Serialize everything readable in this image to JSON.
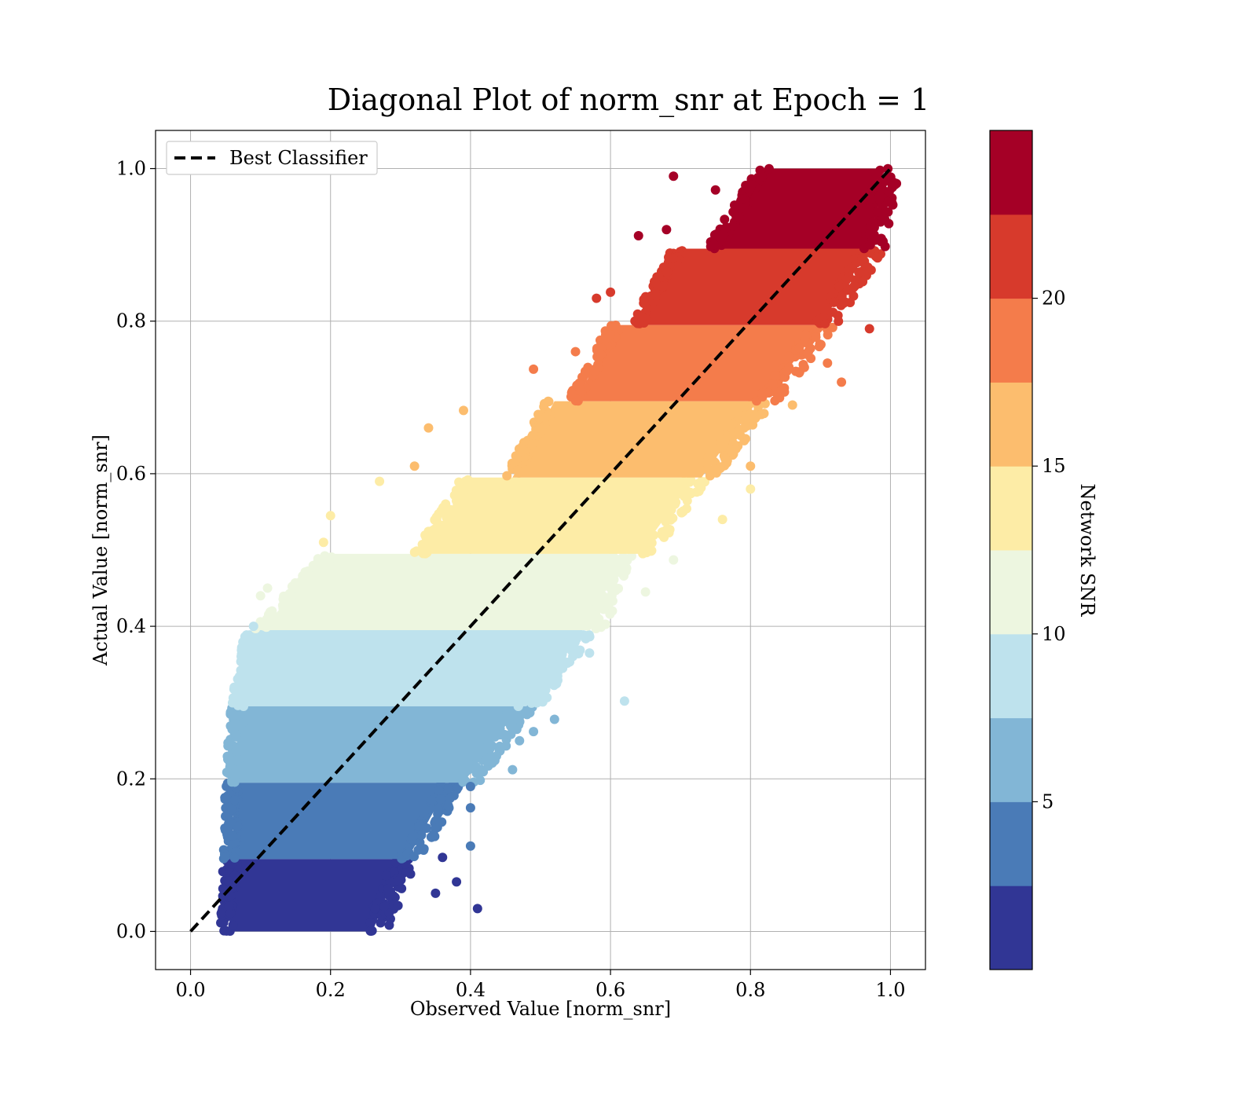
{
  "chart_data": {
    "type": "scatter",
    "title": "Diagonal Plot of norm_snr at Epoch = 1",
    "xlabel": "Observed Value [norm_snr]",
    "ylabel": "Actual Value [norm_snr]",
    "xlim": [
      -0.05,
      1.05
    ],
    "ylim": [
      -0.05,
      1.05
    ],
    "xticks": [
      0.0,
      0.2,
      0.4,
      0.6,
      0.8,
      1.0
    ],
    "yticks": [
      0.0,
      0.2,
      0.4,
      0.6,
      0.8,
      1.0
    ],
    "tick_labels": [
      "0.0",
      "0.2",
      "0.4",
      "0.6",
      "0.8",
      "1.0"
    ],
    "grid": true,
    "legend": {
      "position": "top-left",
      "entries": [
        {
          "label": "Best Classifier",
          "style": "dashed",
          "color": "#000000"
        }
      ]
    },
    "reference_line": {
      "name": "Best Classifier",
      "x": [
        0.0,
        1.0
      ],
      "y": [
        0.0,
        1.0
      ]
    },
    "colorbar": {
      "label": "Network SNR",
      "range": [
        0,
        25
      ],
      "ticks": [
        5,
        10,
        15,
        20
      ],
      "tick_labels": [
        "5",
        "10",
        "15",
        "20"
      ],
      "colormap": "RdYlBu_r",
      "bins": [
        "#313695",
        "#4575b4",
        "#74add1",
        "#abd9e9",
        "#e0f3f8",
        "#ffffbf",
        "#fee090",
        "#fdae61",
        "#f46d43",
        "#a50026"
      ],
      "bin_colors": [
        "#313695",
        "#4a7bb7",
        "#82b6d6",
        "#bee2ed",
        "#edf6e0",
        "#fdeca6",
        "#fcbd6e",
        "#f47c4b",
        "#d73a2c",
        "#a50026"
      ]
    },
    "bands": [
      {
        "y": [
          0.0,
          0.095
        ],
        "x_left": [
          0.055,
          0.06
        ],
        "x_right": [
          0.26,
          0.3
        ],
        "color": "#313695"
      },
      {
        "y": [
          0.095,
          0.195
        ],
        "x_left": [
          0.06,
          0.062
        ],
        "x_right": [
          0.31,
          0.37
        ],
        "color": "#4a7bb7"
      },
      {
        "y": [
          0.195,
          0.295
        ],
        "x_left": [
          0.062,
          0.07
        ],
        "x_right": [
          0.39,
          0.47
        ],
        "color": "#82b6d6"
      },
      {
        "y": [
          0.295,
          0.395
        ],
        "x_left": [
          0.07,
          0.09
        ],
        "x_right": [
          0.48,
          0.56
        ],
        "color": "#bee2ed"
      },
      {
        "y": [
          0.395,
          0.495
        ],
        "x_left": [
          0.1,
          0.2
        ],
        "x_right": [
          0.57,
          0.61
        ],
        "color": "#edf6e0"
      },
      {
        "y": [
          0.495,
          0.595
        ],
        "x_left": [
          0.33,
          0.4
        ],
        "x_right": [
          0.64,
          0.72
        ],
        "color": "#fdeca6"
      },
      {
        "y": [
          0.595,
          0.695
        ],
        "x_left": [
          0.46,
          0.52
        ],
        "x_right": [
          0.73,
          0.81
        ],
        "color": "#fcbd6e"
      },
      {
        "y": [
          0.695,
          0.795
        ],
        "x_left": [
          0.55,
          0.61
        ],
        "x_right": [
          0.82,
          0.9
        ],
        "color": "#f47c4b"
      },
      {
        "y": [
          0.795,
          0.895
        ],
        "x_left": [
          0.64,
          0.7
        ],
        "x_right": [
          0.9,
          0.97
        ],
        "color": "#d73a2c"
      },
      {
        "y": [
          0.895,
          1.0
        ],
        "x_left": [
          0.75,
          0.82
        ],
        "x_right": [
          0.97,
          0.99
        ],
        "color": "#a50026"
      }
    ],
    "outliers": [
      {
        "x": 0.41,
        "y": 0.03,
        "color": "#313695"
      },
      {
        "x": 0.38,
        "y": 0.065,
        "color": "#313695"
      },
      {
        "x": 0.36,
        "y": 0.097,
        "color": "#313695"
      },
      {
        "x": 0.35,
        "y": 0.05,
        "color": "#313695"
      },
      {
        "x": 0.4,
        "y": 0.112,
        "color": "#4a7bb7"
      },
      {
        "x": 0.4,
        "y": 0.162,
        "color": "#4a7bb7"
      },
      {
        "x": 0.4,
        "y": 0.19,
        "color": "#4a7bb7"
      },
      {
        "x": 0.35,
        "y": 0.135,
        "color": "#4a7bb7"
      },
      {
        "x": 0.46,
        "y": 0.212,
        "color": "#82b6d6"
      },
      {
        "x": 0.49,
        "y": 0.262,
        "color": "#82b6d6"
      },
      {
        "x": 0.52,
        "y": 0.278,
        "color": "#82b6d6"
      },
      {
        "x": 0.47,
        "y": 0.25,
        "color": "#82b6d6"
      },
      {
        "x": 0.62,
        "y": 0.302,
        "color": "#bee2ed"
      },
      {
        "x": 0.57,
        "y": 0.365,
        "color": "#bee2ed"
      },
      {
        "x": 0.09,
        "y": 0.4,
        "color": "#bee2ed"
      },
      {
        "x": 0.08,
        "y": 0.358,
        "color": "#bee2ed"
      },
      {
        "x": 0.65,
        "y": 0.445,
        "color": "#edf6e0"
      },
      {
        "x": 0.69,
        "y": 0.487,
        "color": "#edf6e0"
      },
      {
        "x": 0.1,
        "y": 0.44,
        "color": "#edf6e0"
      },
      {
        "x": 0.11,
        "y": 0.45,
        "color": "#edf6e0"
      },
      {
        "x": 0.2,
        "y": 0.545,
        "color": "#fdeca6"
      },
      {
        "x": 0.19,
        "y": 0.51,
        "color": "#fdeca6"
      },
      {
        "x": 0.27,
        "y": 0.59,
        "color": "#fdeca6"
      },
      {
        "x": 0.76,
        "y": 0.54,
        "color": "#fdeca6"
      },
      {
        "x": 0.8,
        "y": 0.58,
        "color": "#fdeca6"
      },
      {
        "x": 0.39,
        "y": 0.683,
        "color": "#fcbd6e"
      },
      {
        "x": 0.34,
        "y": 0.66,
        "color": "#fcbd6e"
      },
      {
        "x": 0.32,
        "y": 0.61,
        "color": "#fcbd6e"
      },
      {
        "x": 0.8,
        "y": 0.61,
        "color": "#fcbd6e"
      },
      {
        "x": 0.86,
        "y": 0.69,
        "color": "#fcbd6e"
      },
      {
        "x": 0.49,
        "y": 0.737,
        "color": "#f47c4b"
      },
      {
        "x": 0.55,
        "y": 0.76,
        "color": "#f47c4b"
      },
      {
        "x": 0.93,
        "y": 0.72,
        "color": "#f47c4b"
      },
      {
        "x": 0.91,
        "y": 0.745,
        "color": "#f47c4b"
      },
      {
        "x": 0.58,
        "y": 0.83,
        "color": "#d73a2c"
      },
      {
        "x": 0.6,
        "y": 0.838,
        "color": "#d73a2c"
      },
      {
        "x": 0.97,
        "y": 0.79,
        "color": "#d73a2c"
      },
      {
        "x": 0.64,
        "y": 0.912,
        "color": "#a50026"
      },
      {
        "x": 0.69,
        "y": 0.99,
        "color": "#a50026"
      },
      {
        "x": 0.75,
        "y": 0.972,
        "color": "#a50026"
      },
      {
        "x": 0.68,
        "y": 0.92,
        "color": "#a50026"
      }
    ]
  }
}
